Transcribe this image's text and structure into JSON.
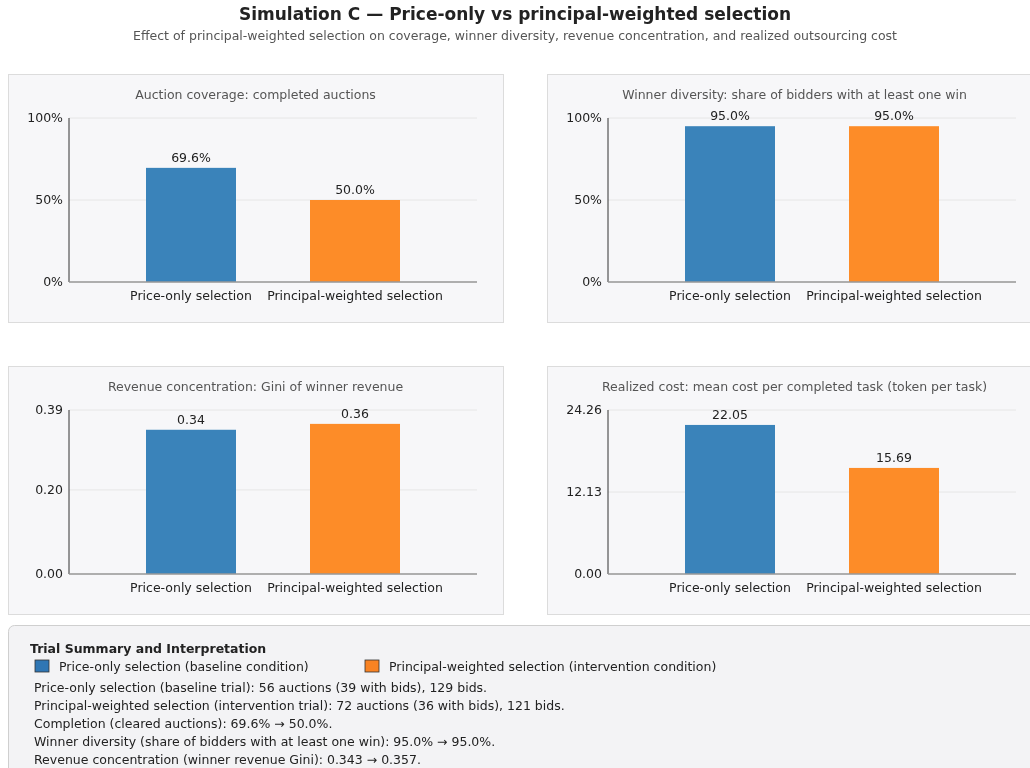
{
  "chart_data": [
    {
      "type": "other",
      "title": "Simulation C — Price-only vs principal-weighted selection",
      "subtitle": "Effect of principal-weighted selection on coverage, winner diversity, revenue concentration, and realized outsourcing cost"
    },
    {
      "type": "bar",
      "title": "Auction coverage: completed auctions",
      "categories": [
        "Price-only selection",
        "Principal-weighted selection"
      ],
      "values": [
        69.6,
        50.0
      ],
      "colors": [
        "#3a83ba",
        "#fd8c28"
      ],
      "value_labels": [
        "69.6%",
        "50.0%"
      ],
      "ylim": [
        0,
        100
      ],
      "yticks": [
        {
          "value": 0,
          "label": "0%"
        },
        {
          "value": 50,
          "label": "50%"
        },
        {
          "value": 100,
          "label": "100%"
        }
      ],
      "grid": "y"
    },
    {
      "type": "bar",
      "title": "Winner diversity: share of bidders with at least one win",
      "categories": [
        "Price-only selection",
        "Principal-weighted selection"
      ],
      "values": [
        95.0,
        95.0
      ],
      "colors": [
        "#3a83ba",
        "#fd8c28"
      ],
      "value_labels": [
        "95.0%",
        "95.0%"
      ],
      "ylim": [
        0,
        100
      ],
      "yticks": [
        {
          "value": 0,
          "label": "0%"
        },
        {
          "value": 50,
          "label": "50%"
        },
        {
          "value": 100,
          "label": "100%"
        }
      ],
      "grid": "y"
    },
    {
      "type": "bar",
      "title": "Revenue concentration: Gini of winner revenue",
      "categories": [
        "Price-only selection",
        "Principal-weighted selection"
      ],
      "values": [
        0.343,
        0.357
      ],
      "colors": [
        "#3a83ba",
        "#fd8c28"
      ],
      "value_labels": [
        "0.34",
        "0.36"
      ],
      "ylim": [
        0,
        0.39
      ],
      "yticks": [
        {
          "value": 0,
          "label": "0.00"
        },
        {
          "value": 0.2,
          "label": "0.20"
        },
        0.39
      ],
      "grid": "y"
    },
    {
      "type": "bar",
      "title": "Realized cost: mean cost per completed task (token per task)",
      "categories": [
        "Price-only selection",
        "Principal-weighted selection"
      ],
      "values": [
        22.05,
        15.69
      ],
      "colors": [
        "#3a83ba",
        "#fd8c28"
      ],
      "value_labels": [
        "22.05",
        "15.69"
      ],
      "ylim": [
        0,
        24.26
      ],
      "yticks": [
        {
          "value": 0,
          "label": "0.00"
        },
        12.13,
        24.26
      ],
      "grid": "y"
    },
    {
      "type": "other",
      "title": "Trial Summary and Interpretation",
      "colors": [
        "#2f76b4",
        "#f98323"
      ],
      "annotations": [
        "Price-only selection (baseline condition)",
        "Principal-weighted selection (intervention condition)",
        "Price-only selection (baseline trial): 56 auctions (39 with bids), 129 bids.",
        "Principal-weighted selection (intervention trial): 72 auctions (36 with bids), 121 bids.",
        "Completion (cleared auctions): 69.6% → 50.0%.",
        "Winner diversity (share of bidders with at least one win): 95.0% → 95.0%.",
        "Revenue concentration (winner revenue Gini): 0.343 → 0.357."
      ]
    }
  ]
}
